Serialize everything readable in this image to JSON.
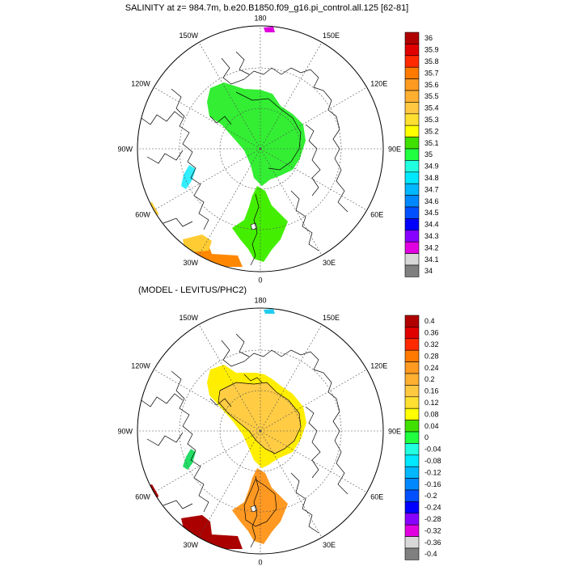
{
  "panels": [
    {
      "title": "SALINITY at z= 984.7m, b.e20.B1850.f09_g16.pi_control.all.125 [62-81]",
      "longitude_labels": [
        "180",
        "150E",
        "120E",
        "90E",
        "60E",
        "30E",
        "0",
        "30W",
        "60W",
        "90W",
        "120W",
        "150W"
      ],
      "colorbar": {
        "labels": [
          "36",
          "35.9",
          "35.8",
          "35.7",
          "35.6",
          "35.5",
          "35.4",
          "35.3",
          "35.2",
          "35.1",
          "35",
          "34.9",
          "34.8",
          "34.7",
          "34.6",
          "34.5",
          "34.4",
          "34.3",
          "34.2",
          "34.1",
          "34"
        ],
        "colors": [
          "#b00000",
          "#e00000",
          "#ff2a00",
          "#ff7a00",
          "#ff9a20",
          "#ffb030",
          "#ffc840",
          "#ffe030",
          "#ffff00",
          "#40e000",
          "#20ff40",
          "#20ffe0",
          "#00e8ff",
          "#00b8ff",
          "#0088ff",
          "#0050ff",
          "#0000ff",
          "#8800ff",
          "#e000e0",
          "#d8d8d8",
          "#808080"
        ]
      },
      "fills": [
        {
          "name": "arctic-basin-region",
          "color": "#33ee33"
        },
        {
          "name": "nordic-seas-region",
          "color": "#44ee00"
        },
        {
          "name": "baffin-bay-region",
          "color": "#33eeff"
        },
        {
          "name": "labrador-sea-region",
          "color": "#ffd040"
        },
        {
          "name": "north-atlantic-orange-region",
          "color": "#ff8800"
        },
        {
          "name": "north-atlantic-yellow-region",
          "color": "#ffcc33"
        },
        {
          "name": "bering-patch-region",
          "color": "#dd00dd"
        }
      ]
    },
    {
      "title": "(MODEL - LEVITUS/PHC2)",
      "longitude_labels": [
        "180",
        "150E",
        "120E",
        "90E",
        "60E",
        "30E",
        "0",
        "30W",
        "60W",
        "90W",
        "120W",
        "150W"
      ],
      "colorbar": {
        "labels": [
          "0.4",
          "0.36",
          "0.32",
          "0.28",
          "0.24",
          "0.2",
          "0.16",
          "0.12",
          "0.08",
          "0.04",
          "0",
          "-0.04",
          "-0.08",
          "-0.12",
          "-0.16",
          "-0.2",
          "-0.24",
          "-0.28",
          "-0.32",
          "-0.36",
          "-0.4"
        ],
        "colors": [
          "#b00000",
          "#e00000",
          "#ff2a00",
          "#ff7a00",
          "#ff9a20",
          "#ffb030",
          "#ffc840",
          "#ffe030",
          "#ffff00",
          "#40e000",
          "#20ff40",
          "#20ffe0",
          "#00e8ff",
          "#00b8ff",
          "#0088ff",
          "#0050ff",
          "#0000ff",
          "#8800ff",
          "#e000e0",
          "#d8d8d8",
          "#808080"
        ]
      },
      "fills": [
        {
          "name": "arctic-basin-yellow-region",
          "color": "#ffee00"
        },
        {
          "name": "arctic-basin-light-orange-region",
          "color": "#ffcc44"
        },
        {
          "name": "nordic-seas-region",
          "color": "#ff9922"
        },
        {
          "name": "labrador-sea-region",
          "color": "#aa0000"
        },
        {
          "name": "north-atlantic-region",
          "color": "#aa0000"
        },
        {
          "name": "baffin-bay-region",
          "color": "#22dd66"
        },
        {
          "name": "bering-patch-region",
          "color": "#22ccee"
        }
      ]
    }
  ]
}
